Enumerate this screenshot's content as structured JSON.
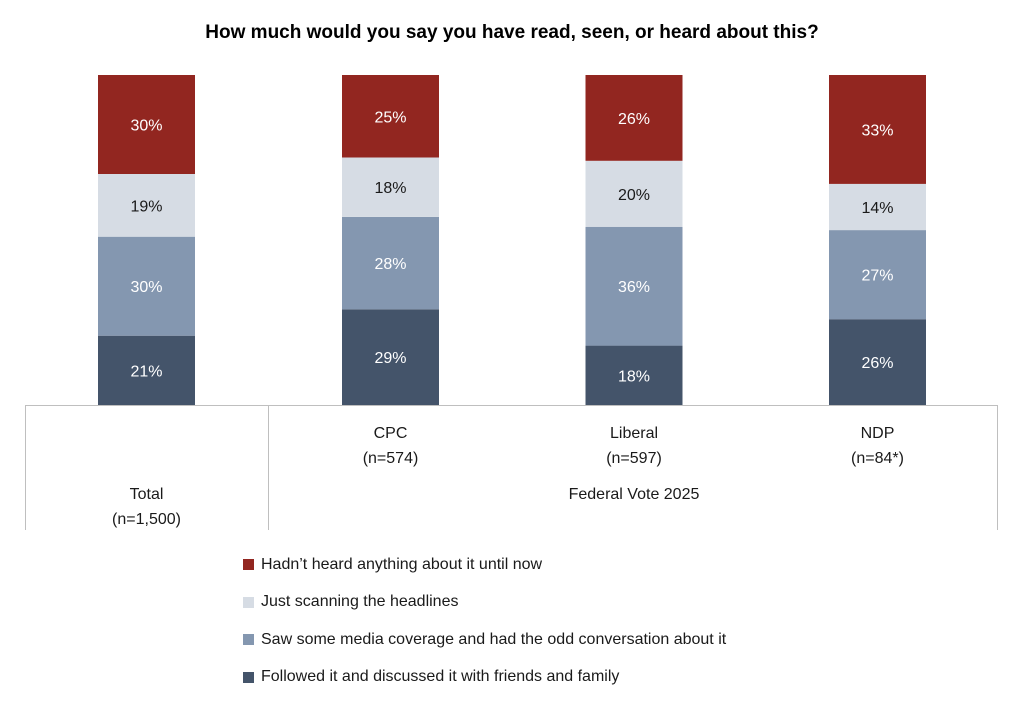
{
  "chart_data": {
    "type": "bar",
    "stacked": true,
    "percent": true,
    "title": "How much would you say you have read, seen, or heard about this?",
    "categories": [
      {
        "name": "Total",
        "n": "(n=1,500)"
      },
      {
        "name": "CPC",
        "n": "(n=574)"
      },
      {
        "name": "Liberal",
        "n": "(n=597)"
      },
      {
        "name": "NDP",
        "n": "(n=84*)"
      }
    ],
    "group_label": "Federal Vote 2025",
    "series": [
      {
        "name": "Followed it and discussed it with friends and family",
        "color": "#44546a",
        "label_color": "#ffffff",
        "values": [
          21,
          29,
          18,
          26
        ]
      },
      {
        "name": "Saw some media coverage and had the odd conversation about it",
        "color": "#8497b0",
        "label_color": "#ffffff",
        "values": [
          30,
          28,
          36,
          27
        ]
      },
      {
        "name": "Just scanning the headlines",
        "color": "#d6dce4",
        "label_color": "#1a1a1a",
        "values": [
          19,
          18,
          20,
          14
        ]
      },
      {
        "name": "Hadn’t heard anything about it until now",
        "color": "#922620",
        "label_color": "#ffffff",
        "values": [
          30,
          25,
          26,
          33
        ]
      }
    ],
    "legend_order": [
      3,
      2,
      1,
      0
    ],
    "ylim": [
      0,
      100
    ],
    "legend_position": "bottom"
  }
}
